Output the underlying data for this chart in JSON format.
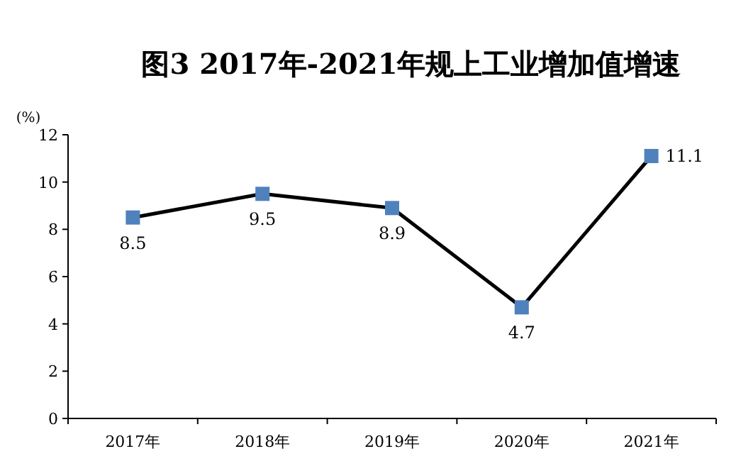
{
  "chart_data": {
    "type": "line",
    "title": "图3 2017年-2021年规上工业增加值增速",
    "ylabel": "(%)",
    "categories": [
      "2017年",
      "2018年",
      "2019年",
      "2020年",
      "2021年"
    ],
    "series": [
      {
        "color": "#000000",
        "colors": [
          "#4f81bd",
          "#4f81bd",
          "#4f81bd",
          "#4f81bd",
          "#4f81bd"
        ],
        "values": [
          8.5,
          9.5,
          8.9,
          4.7,
          11.1
        ]
      }
    ],
    "ylim": [
      0,
      12
    ],
    "yticks": [
      0,
      2,
      4,
      6,
      8,
      10,
      12
    ],
    "data_labels": true,
    "marker": "square",
    "line_style": "solid"
  }
}
